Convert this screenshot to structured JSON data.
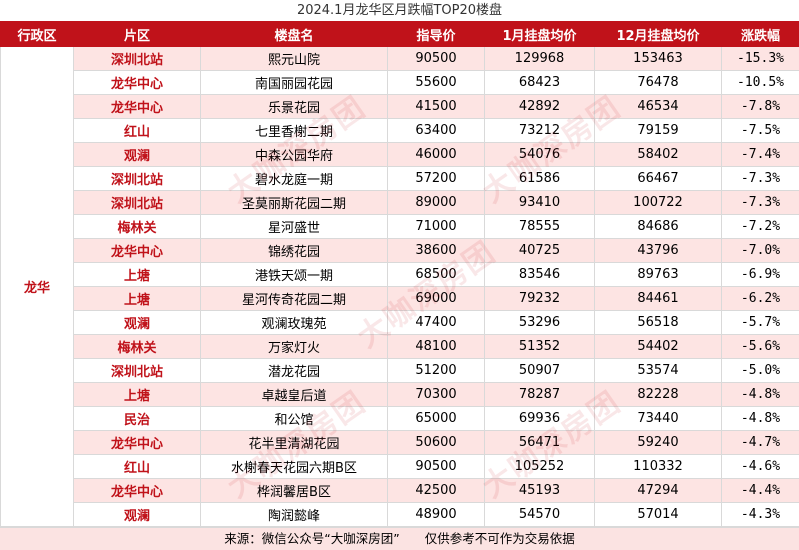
{
  "title": "2024.1月龙华区月跌幅TOP20楼盘",
  "headers": [
    "行政区",
    "片区",
    "楼盘名",
    "指导价",
    "1月挂盘均价",
    "12月挂盘均价",
    "涨跌幅"
  ],
  "district": "龙华",
  "rows": [
    {
      "area": "深圳北站",
      "name": "熙元山院",
      "guide": "90500",
      "jan": "129968",
      "dec": "153463",
      "chg": "-15.3%"
    },
    {
      "area": "龙华中心",
      "name": "南国丽园花园",
      "guide": "55600",
      "jan": "68423",
      "dec": "76478",
      "chg": "-10.5%"
    },
    {
      "area": "龙华中心",
      "name": "乐景花园",
      "guide": "41500",
      "jan": "42892",
      "dec": "46534",
      "chg": "-7.8%"
    },
    {
      "area": "红山",
      "name": "七里香榭二期",
      "guide": "63400",
      "jan": "73212",
      "dec": "79159",
      "chg": "-7.5%"
    },
    {
      "area": "观澜",
      "name": "中森公园华府",
      "guide": "46000",
      "jan": "54076",
      "dec": "58402",
      "chg": "-7.4%"
    },
    {
      "area": "深圳北站",
      "name": "碧水龙庭一期",
      "guide": "57200",
      "jan": "61586",
      "dec": "66467",
      "chg": "-7.3%"
    },
    {
      "area": "深圳北站",
      "name": "圣莫丽斯花园二期",
      "guide": "89000",
      "jan": "93410",
      "dec": "100722",
      "chg": "-7.3%"
    },
    {
      "area": "梅林关",
      "name": "星河盛世",
      "guide": "71000",
      "jan": "78555",
      "dec": "84686",
      "chg": "-7.2%"
    },
    {
      "area": "龙华中心",
      "name": "锦绣花园",
      "guide": "38600",
      "jan": "40725",
      "dec": "43796",
      "chg": "-7.0%"
    },
    {
      "area": "上塘",
      "name": "港铁天颂一期",
      "guide": "68500",
      "jan": "83546",
      "dec": "89763",
      "chg": "-6.9%"
    },
    {
      "area": "上塘",
      "name": "星河传奇花园二期",
      "guide": "69000",
      "jan": "79232",
      "dec": "84461",
      "chg": "-6.2%"
    },
    {
      "area": "观澜",
      "name": "观澜玫瑰苑",
      "guide": "47400",
      "jan": "53296",
      "dec": "56518",
      "chg": "-5.7%"
    },
    {
      "area": "梅林关",
      "name": "万家灯火",
      "guide": "48100",
      "jan": "51352",
      "dec": "54402",
      "chg": "-5.6%"
    },
    {
      "area": "深圳北站",
      "name": "潜龙花园",
      "guide": "51200",
      "jan": "50907",
      "dec": "53574",
      "chg": "-5.0%"
    },
    {
      "area": "上塘",
      "name": "卓越皇后道",
      "guide": "70300",
      "jan": "78287",
      "dec": "82228",
      "chg": "-4.8%"
    },
    {
      "area": "民治",
      "name": "和公馆",
      "guide": "65000",
      "jan": "69936",
      "dec": "73440",
      "chg": "-4.8%"
    },
    {
      "area": "龙华中心",
      "name": "花半里清湖花园",
      "guide": "50600",
      "jan": "56471",
      "dec": "59240",
      "chg": "-4.7%"
    },
    {
      "area": "红山",
      "name": "水榭春天花园六期B区",
      "guide": "90500",
      "jan": "105252",
      "dec": "110332",
      "chg": "-4.6%"
    },
    {
      "area": "龙华中心",
      "name": "桦润馨居B区",
      "guide": "42500",
      "jan": "45193",
      "dec": "47294",
      "chg": "-4.4%"
    },
    {
      "area": "观澜",
      "name": "陶润懿峰",
      "guide": "48900",
      "jan": "54570",
      "dec": "57014",
      "chg": "-4.3%"
    }
  ],
  "footer": "来源：微信公众号“大咖深房团”　　仅供参考不可作为交易依据",
  "watermark": "大咖深房团",
  "colors": {
    "accent": "#c0121a",
    "stripe": "#fde4e3"
  }
}
